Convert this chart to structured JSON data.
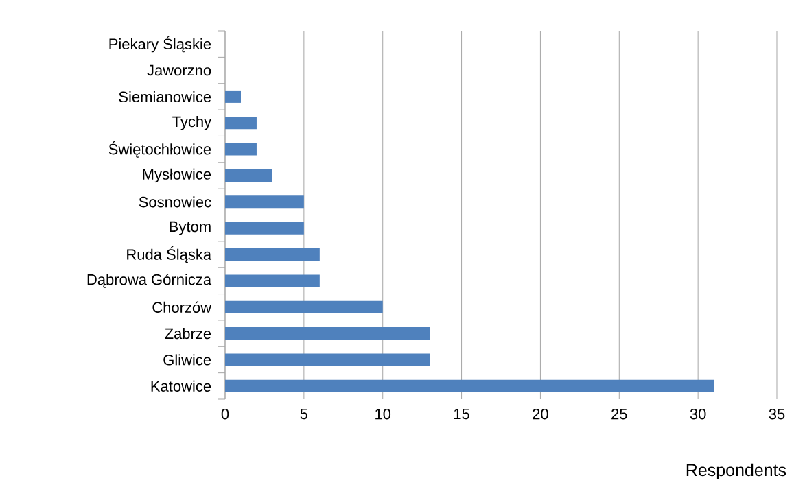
{
  "chart_data": {
    "type": "bar",
    "orientation": "horizontal",
    "xlabel": "Respondents",
    "categories": [
      "Piekary Śląskie",
      "Jaworzno",
      "Siemianowice",
      "Tychy",
      "Świętochłowice",
      "Mysłowice",
      "Sosnowiec",
      "Bytom",
      "Ruda Śląska",
      "Dąbrowa Górnicza",
      "Chorzów",
      "Zabrze",
      "Gliwice",
      "Katowice"
    ],
    "values": [
      0,
      0,
      1,
      2,
      2,
      3,
      5,
      5,
      6,
      6,
      10,
      13,
      13,
      31
    ],
    "color": "#4f81bd",
    "xlim": [
      0,
      35
    ],
    "xticks": [
      0,
      5,
      10,
      15,
      20,
      25,
      30,
      35
    ],
    "grid": "x"
  }
}
